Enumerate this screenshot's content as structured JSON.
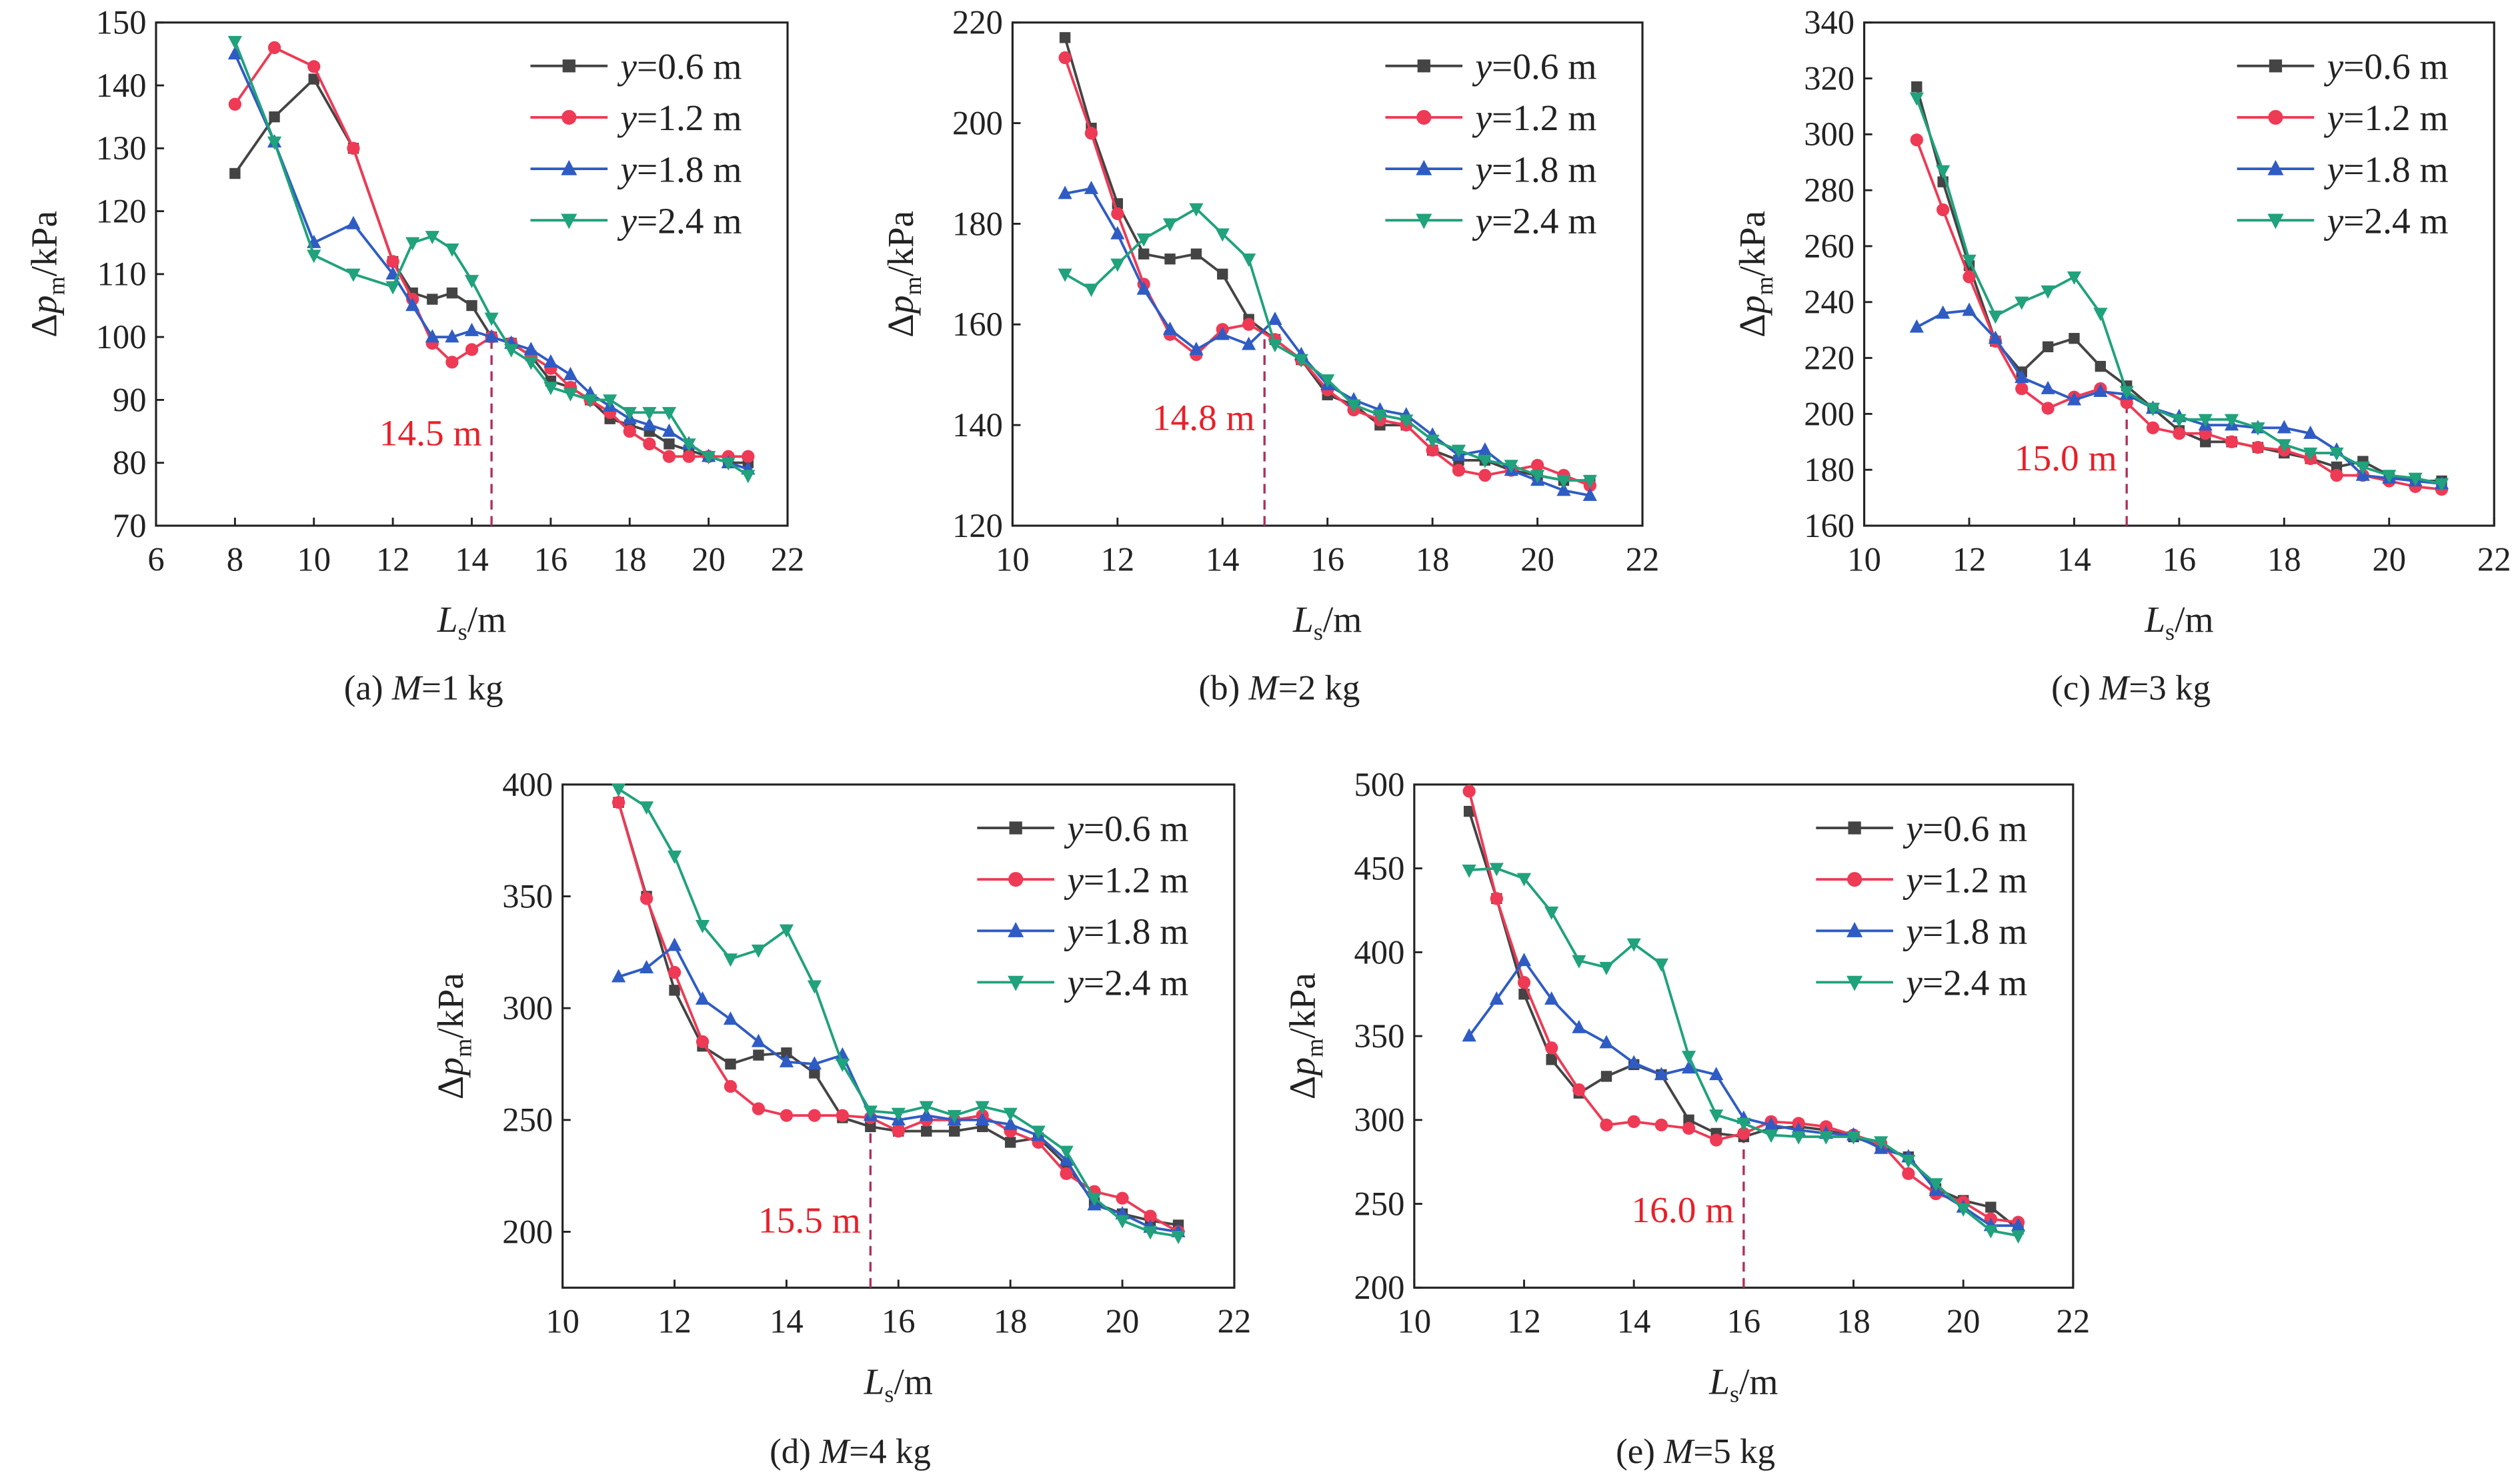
{
  "colors": {
    "y06": "#444444",
    "y12": "#ee3a55",
    "y18": "#2f5cc4",
    "y24": "#20a27c",
    "threshold": "#b0305a"
  },
  "chart_data": [
    {
      "type": "line",
      "caption": "(a) M=1 kg",
      "caption_var": "M",
      "xlabel": "Ls/m",
      "ylabel": "Δpm/kPa",
      "xlim": [
        6,
        22
      ],
      "ylim": [
        70,
        150
      ],
      "xticks": [
        6,
        8,
        10,
        12,
        14,
        16,
        18,
        20,
        22
      ],
      "yticks": [
        70,
        80,
        90,
        100,
        110,
        120,
        130,
        140,
        150
      ],
      "legend_position": "top-right",
      "threshold": {
        "x": 14.5,
        "top": 100,
        "label": "14.5 m"
      },
      "x": [
        8,
        9,
        10,
        11,
        12,
        12.5,
        13,
        13.5,
        14,
        14.5,
        15,
        15.5,
        16,
        16.5,
        17,
        17.5,
        18,
        18.5,
        19,
        19.5,
        20,
        20.5,
        21
      ],
      "series": [
        {
          "name": "y=0.6 m",
          "key": "y06",
          "marker": "square",
          "values": [
            126,
            135,
            141,
            130,
            112,
            107,
            106,
            107,
            105,
            100,
            99,
            97,
            93,
            92,
            90,
            87,
            86,
            85,
            83,
            82,
            81,
            80,
            80
          ]
        },
        {
          "name": "y=1.2 m",
          "key": "y12",
          "marker": "circle",
          "values": [
            137,
            146,
            143,
            130,
            112,
            106,
            99,
            96,
            98,
            100,
            99,
            97,
            95,
            92,
            90,
            88,
            85,
            83,
            81,
            81,
            81,
            81,
            81
          ]
        },
        {
          "name": "y=1.8 m",
          "key": "y18",
          "marker": "triangle-up",
          "values": [
            145,
            131,
            115,
            118,
            110,
            105,
            100,
            100,
            101,
            100,
            99,
            98,
            96,
            94,
            91,
            89,
            87,
            86,
            85,
            83,
            81,
            80,
            79
          ]
        },
        {
          "name": "y=2.4 m",
          "key": "y24",
          "marker": "triangle-down",
          "values": [
            147,
            131,
            113,
            110,
            108,
            115,
            116,
            114,
            109,
            103,
            98,
            96,
            92,
            91,
            90,
            90,
            88,
            88,
            88,
            83,
            81,
            80,
            78
          ]
        }
      ]
    },
    {
      "type": "line",
      "caption": "(b) M=2 kg",
      "caption_var": "M",
      "xlabel": "Ls/m",
      "ylabel": "Δpm/kPa",
      "xlim": [
        10,
        22
      ],
      "ylim": [
        120,
        220
      ],
      "xticks": [
        10,
        12,
        14,
        16,
        18,
        20,
        22
      ],
      "yticks": [
        120,
        140,
        160,
        180,
        200,
        220
      ],
      "legend_position": "top-right",
      "threshold": {
        "x": 14.8,
        "top": 158,
        "label": "14.8 m"
      },
      "x": [
        11,
        11.5,
        12,
        12.5,
        13,
        13.5,
        14,
        14.5,
        15,
        15.5,
        16,
        16.5,
        17,
        17.5,
        18,
        18.5,
        19,
        19.5,
        20,
        20.5,
        21
      ],
      "series": [
        {
          "name": "y=0.6 m",
          "key": "y06",
          "marker": "square",
          "values": [
            217,
            199,
            184,
            174,
            173,
            174,
            170,
            161,
            157,
            153,
            146,
            144,
            140,
            140,
            135,
            133,
            133,
            131,
            130,
            129,
            129
          ]
        },
        {
          "name": "y=1.2 m",
          "key": "y12",
          "marker": "circle",
          "values": [
            213,
            198,
            182,
            168,
            158,
            154,
            159,
            160,
            157,
            153,
            147,
            143,
            141,
            140,
            135,
            131,
            130,
            131,
            132,
            130,
            128
          ]
        },
        {
          "name": "y=1.8 m",
          "key": "y18",
          "marker": "triangle-up",
          "values": [
            186,
            187,
            178,
            167,
            159,
            155,
            158,
            156,
            161,
            154,
            148,
            145,
            143,
            142,
            138,
            134,
            135,
            131,
            129,
            127,
            126
          ]
        },
        {
          "name": "y=2.4 m",
          "key": "y24",
          "marker": "triangle-down",
          "values": [
            170,
            167,
            172,
            177,
            180,
            183,
            178,
            173,
            156,
            153,
            149,
            144,
            142,
            141,
            137,
            135,
            133,
            132,
            130,
            129,
            129
          ]
        }
      ]
    },
    {
      "type": "line",
      "caption": "(c) M=3 kg",
      "caption_var": "M",
      "xlabel": "Ls/m",
      "ylabel": "Δpm/kPa",
      "xlim": [
        10,
        22
      ],
      "ylim": [
        160,
        340
      ],
      "xticks": [
        10,
        12,
        14,
        16,
        18,
        20,
        22
      ],
      "yticks": [
        160,
        180,
        200,
        220,
        240,
        260,
        280,
        300,
        320,
        340
      ],
      "legend_position": "top-right",
      "threshold": {
        "x": 15.0,
        "top": 205,
        "label": "15.0 m"
      },
      "x": [
        11,
        11.5,
        12,
        12.5,
        13,
        13.5,
        14,
        14.5,
        15,
        15.5,
        16,
        16.5,
        17,
        17.5,
        18,
        18.5,
        19,
        19.5,
        20,
        20.5,
        21
      ],
      "series": [
        {
          "name": "y=0.6 m",
          "key": "y06",
          "marker": "square",
          "values": [
            317,
            283,
            253,
            226,
            215,
            224,
            227,
            217,
            210,
            202,
            194,
            190,
            190,
            188,
            186,
            184,
            181,
            183,
            178,
            176,
            176
          ]
        },
        {
          "name": "y=1.2 m",
          "key": "y12",
          "marker": "circle",
          "values": [
            298,
            273,
            249,
            226,
            209,
            202,
            206,
            209,
            204,
            195,
            193,
            193,
            190,
            188,
            187,
            184,
            178,
            178,
            176,
            174,
            173
          ]
        },
        {
          "name": "y=1.8 m",
          "key": "y18",
          "marker": "triangle-up",
          "values": [
            231,
            236,
            237,
            227,
            213,
            209,
            205,
            208,
            207,
            202,
            199,
            196,
            196,
            195,
            195,
            193,
            187,
            178,
            177,
            176,
            175
          ]
        },
        {
          "name": "y=2.4 m",
          "key": "y24",
          "marker": "triangle-down",
          "values": [
            313,
            287,
            255,
            235,
            240,
            244,
            249,
            236,
            208,
            202,
            198,
            198,
            198,
            195,
            189,
            186,
            186,
            181,
            178,
            177,
            175
          ]
        }
      ]
    },
    {
      "type": "line",
      "caption": "(d) M=4 kg",
      "caption_var": "M",
      "xlabel": "Ls/m",
      "ylabel": "Δpm/kPa",
      "xlim": [
        10,
        22
      ],
      "ylim": [
        175,
        400
      ],
      "xticks": [
        10,
        12,
        14,
        16,
        18,
        20,
        22
      ],
      "yticks": [
        200,
        250,
        300,
        350,
        400
      ],
      "legend_position": "top-right",
      "threshold": {
        "x": 15.5,
        "top": 248,
        "label": "15.5 m"
      },
      "x": [
        11,
        11.5,
        12,
        12.5,
        13,
        13.5,
        14,
        14.5,
        15,
        15.5,
        16,
        16.5,
        17,
        17.5,
        18,
        18.5,
        19,
        19.5,
        20,
        20.5,
        21
      ],
      "series": [
        {
          "name": "y=0.6 m",
          "key": "y06",
          "marker": "square",
          "values": [
            392,
            350,
            308,
            283,
            275,
            279,
            280,
            271,
            251,
            247,
            245,
            245,
            245,
            247,
            240,
            242,
            230,
            213,
            208,
            205,
            203
          ]
        },
        {
          "name": "y=1.2 m",
          "key": "y12",
          "marker": "circle",
          "values": [
            392,
            349,
            316,
            285,
            265,
            255,
            252,
            252,
            252,
            251,
            245,
            250,
            250,
            252,
            245,
            240,
            226,
            218,
            215,
            207,
            200
          ]
        },
        {
          "name": "y=1.8 m",
          "key": "y18",
          "marker": "triangle-up",
          "values": [
            314,
            318,
            328,
            304,
            295,
            285,
            276,
            275,
            279,
            252,
            250,
            252,
            250,
            250,
            248,
            243,
            232,
            212,
            208,
            202,
            200
          ]
        },
        {
          "name": "y=2.4 m",
          "key": "y24",
          "marker": "triangle-down",
          "values": [
            398,
            390,
            368,
            337,
            322,
            326,
            335,
            310,
            275,
            254,
            253,
            256,
            252,
            256,
            253,
            245,
            236,
            215,
            205,
            200,
            198
          ]
        }
      ]
    },
    {
      "type": "line",
      "caption": "(e) M=5 kg",
      "caption_var": "M",
      "xlabel": "Ls/m",
      "ylabel": "Δpm/kPa",
      "xlim": [
        10,
        22
      ],
      "ylim": [
        200,
        500
      ],
      "xticks": [
        10,
        12,
        14,
        16,
        18,
        20,
        22
      ],
      "yticks": [
        200,
        250,
        300,
        350,
        400,
        450,
        500
      ],
      "legend_position": "top-right",
      "threshold": {
        "x": 16.0,
        "top": 292,
        "label": "16.0 m"
      },
      "x": [
        11,
        11.5,
        12,
        12.5,
        13,
        13.5,
        14,
        14.5,
        15,
        15.5,
        16,
        16.5,
        17,
        17.5,
        18,
        18.5,
        19,
        19.5,
        20,
        20.5,
        21
      ],
      "series": [
        {
          "name": "y=0.6 m",
          "key": "y06",
          "marker": "square",
          "values": [
            484,
            432,
            375,
            336,
            316,
            326,
            333,
            327,
            300,
            292,
            290,
            295,
            296,
            294,
            290,
            284,
            278,
            259,
            252,
            248,
            235
          ]
        },
        {
          "name": "y=1.2 m",
          "key": "y12",
          "marker": "circle",
          "values": [
            496,
            432,
            382,
            343,
            318,
            297,
            299,
            297,
            295,
            288,
            292,
            299,
            298,
            296,
            291,
            286,
            268,
            256,
            251,
            241,
            239
          ]
        },
        {
          "name": "y=1.8 m",
          "key": "y18",
          "marker": "triangle-up",
          "values": [
            350,
            372,
            395,
            372,
            355,
            346,
            334,
            327,
            331,
            327,
            301,
            297,
            294,
            292,
            291,
            283,
            278,
            258,
            248,
            237,
            237
          ]
        },
        {
          "name": "y=2.4 m",
          "key": "y24",
          "marker": "triangle-down",
          "values": [
            449,
            450,
            444,
            424,
            395,
            391,
            405,
            393,
            338,
            303,
            298,
            291,
            290,
            290,
            290,
            287,
            276,
            262,
            247,
            234,
            231
          ]
        }
      ]
    }
  ]
}
